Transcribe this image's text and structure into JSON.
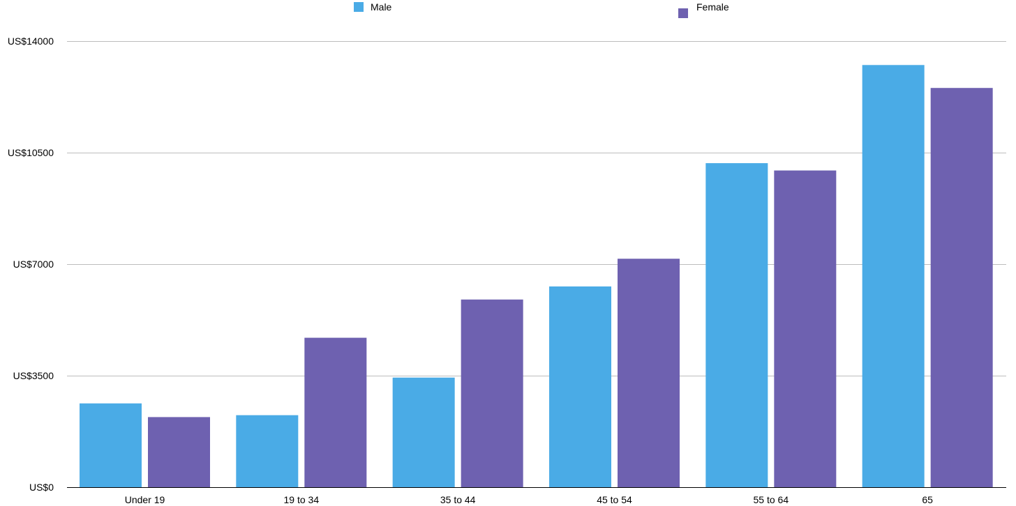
{
  "chart_data": {
    "type": "bar",
    "categories": [
      "Under 19",
      "19 to 34",
      "35 to 44",
      "45 to 54",
      "55 to 64",
      "65"
    ],
    "series": [
      {
        "name": "Male",
        "color": "#4aabe6",
        "values": [
          2630,
          2260,
          3440,
          6300,
          10170,
          13250
        ]
      },
      {
        "name": "Female",
        "color": "#6e61b0",
        "values": [
          2200,
          4690,
          5890,
          7170,
          9940,
          12530
        ]
      }
    ],
    "y_ticks": [
      "US$0",
      "US$3500",
      "US$7000",
      "US$10500",
      "US$14000"
    ],
    "y_tick_values": [
      0,
      3500,
      7000,
      10500,
      14000
    ],
    "ylim": [
      0,
      14000
    ],
    "title": "",
    "xlabel": "",
    "ylabel": "",
    "grid": true,
    "legend_position": "top"
  }
}
